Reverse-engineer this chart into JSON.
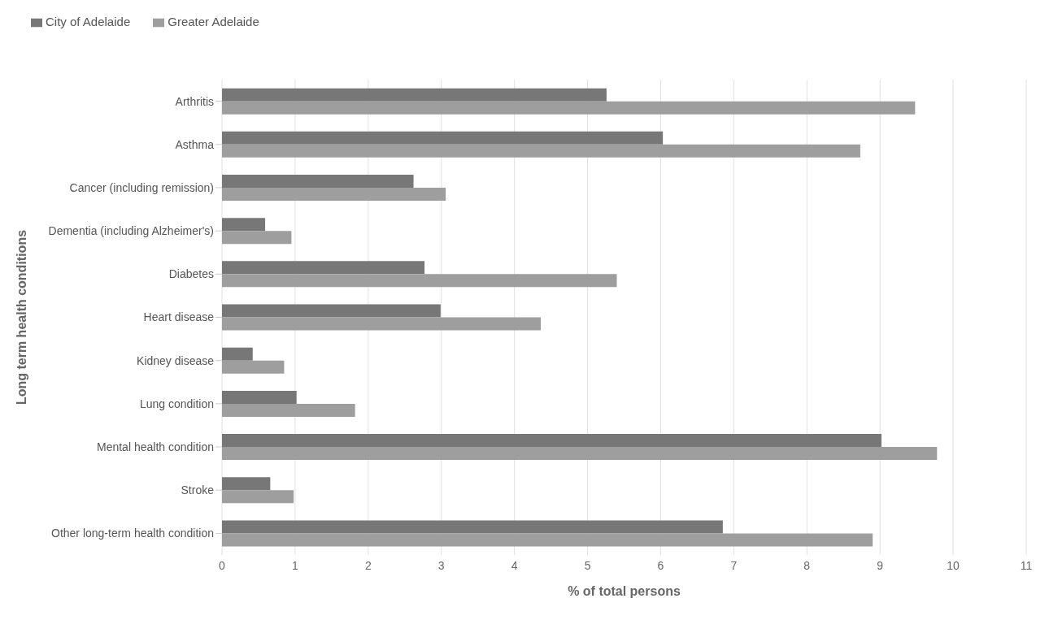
{
  "chart_data": {
    "type": "bar",
    "orientation": "horizontal",
    "xlabel": "% of total persons",
    "ylabel": "Long term health conditions",
    "categories": [
      "Arthritis",
      "Asthma",
      "Cancer (including remission)",
      "Dementia (including Alzheimer's)",
      "Diabetes",
      "Heart disease",
      "Kidney disease",
      "Lung condition",
      "Mental health condition",
      "Stroke",
      "Other long-term health condition"
    ],
    "series": [
      {
        "name": "City of Adelaide",
        "color": "#777777",
        "values": [
          5.26,
          6.03,
          2.62,
          0.59,
          2.77,
          2.99,
          0.42,
          1.02,
          9.02,
          0.66,
          6.85
        ]
      },
      {
        "name": "Greater Adelaide",
        "color": "#9e9e9e",
        "values": [
          9.48,
          8.73,
          3.06,
          0.95,
          5.4,
          4.36,
          0.85,
          1.82,
          9.78,
          0.98,
          8.9
        ]
      }
    ],
    "xlim": [
      0,
      11
    ],
    "xticks": [
      0,
      1,
      2,
      3,
      4,
      5,
      6,
      7,
      8,
      9,
      10,
      11
    ],
    "grid": "x",
    "legend": "top left"
  }
}
